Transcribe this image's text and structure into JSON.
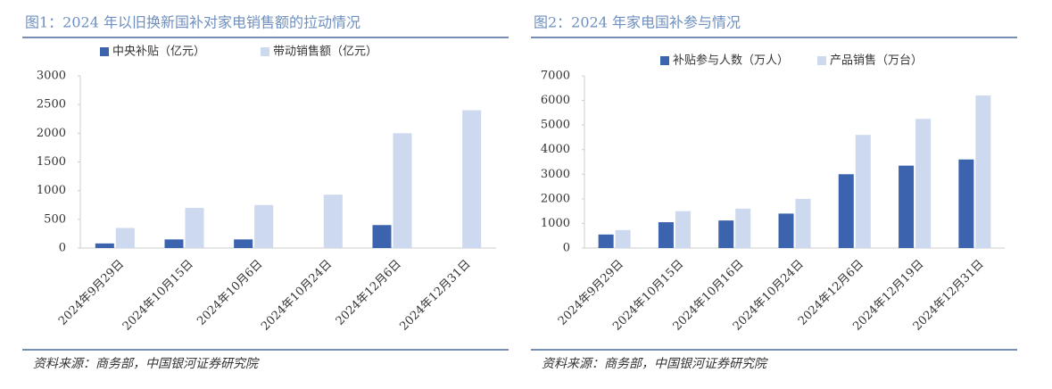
{
  "chart_data": [
    {
      "type": "bar",
      "title": "图1：2024 年以旧换新国补对家电销售额的拉动情况",
      "categories": [
        "2024年9月29日",
        "2024年10月15日",
        "2024年10月6日",
        "2024年10月24日",
        "2024年12月6日",
        "2024年12月31日"
      ],
      "series": [
        {
          "name": "中央补贴（亿元）",
          "color": "#3b63ae",
          "values": [
            80,
            150,
            150,
            null,
            400,
            null
          ]
        },
        {
          "name": "带动销售额（亿元）",
          "color": "#cdd9ee",
          "values": [
            350,
            700,
            750,
            930,
            2000,
            2400
          ]
        }
      ],
      "ylim": [
        0,
        3000
      ],
      "yticks": [
        0,
        500,
        1000,
        1500,
        2000,
        2500,
        3000
      ],
      "source": "资料来源：商务部，中国银河证券研究院"
    },
    {
      "type": "bar",
      "title": "图2：2024 年家电国补参与情况",
      "categories": [
        "2024年9月29日",
        "2024年10月15日",
        "2024年10月16日",
        "2024年10月24日",
        "2024年12月6日",
        "2024年12月19日",
        "2024年12月31日"
      ],
      "series": [
        {
          "name": "补贴参与人数（万人）",
          "color": "#3b63ae",
          "values": [
            550,
            1050,
            1120,
            1400,
            3000,
            3350,
            3600
          ]
        },
        {
          "name": "产品销售（万台）",
          "color": "#cdd9ee",
          "values": [
            730,
            1500,
            1600,
            2000,
            4600,
            5250,
            6200
          ]
        }
      ],
      "ylim": [
        0,
        7000
      ],
      "yticks": [
        0,
        1000,
        2000,
        3000,
        4000,
        5000,
        6000,
        7000
      ],
      "source": "资料来源：商务部，中国银河证券研究院"
    }
  ]
}
